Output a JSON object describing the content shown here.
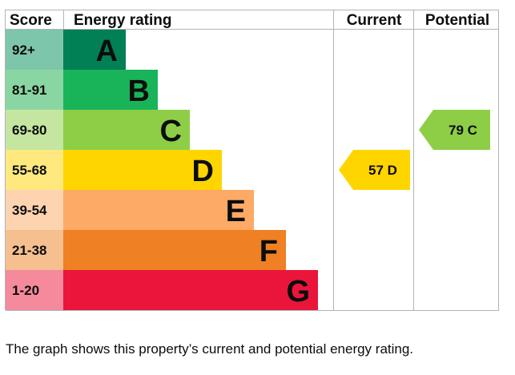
{
  "chart_data": {
    "type": "bar",
    "headers": {
      "score": "Score",
      "rating": "Energy rating",
      "current": "Current",
      "potential": "Potential"
    },
    "bands": [
      {
        "score": "92+",
        "letter": "A",
        "color": "#008054",
        "score_color": "#7dc5ab"
      },
      {
        "score": "81-91",
        "letter": "B",
        "color": "#19b459",
        "score_color": "#8ad6a3"
      },
      {
        "score": "69-80",
        "letter": "C",
        "color": "#8dce46",
        "score_color": "#c4e6a1"
      },
      {
        "score": "55-68",
        "letter": "D",
        "color": "#ffd500",
        "score_color": "#ffe97e"
      },
      {
        "score": "39-54",
        "letter": "E",
        "color": "#fcaa65",
        "score_color": "#fdd3b0"
      },
      {
        "score": "21-38",
        "letter": "F",
        "color": "#ef8023",
        "score_color": "#f6bf90"
      },
      {
        "score": "1-20",
        "letter": "G",
        "color": "#e9153b",
        "score_color": "#f48a9c"
      }
    ],
    "current": {
      "value": 57,
      "band": "D",
      "label": "57 D"
    },
    "potential": {
      "value": 79,
      "band": "C",
      "label": "79 C"
    }
  },
  "caption": "The graph shows this property’s current and potential energy rating."
}
